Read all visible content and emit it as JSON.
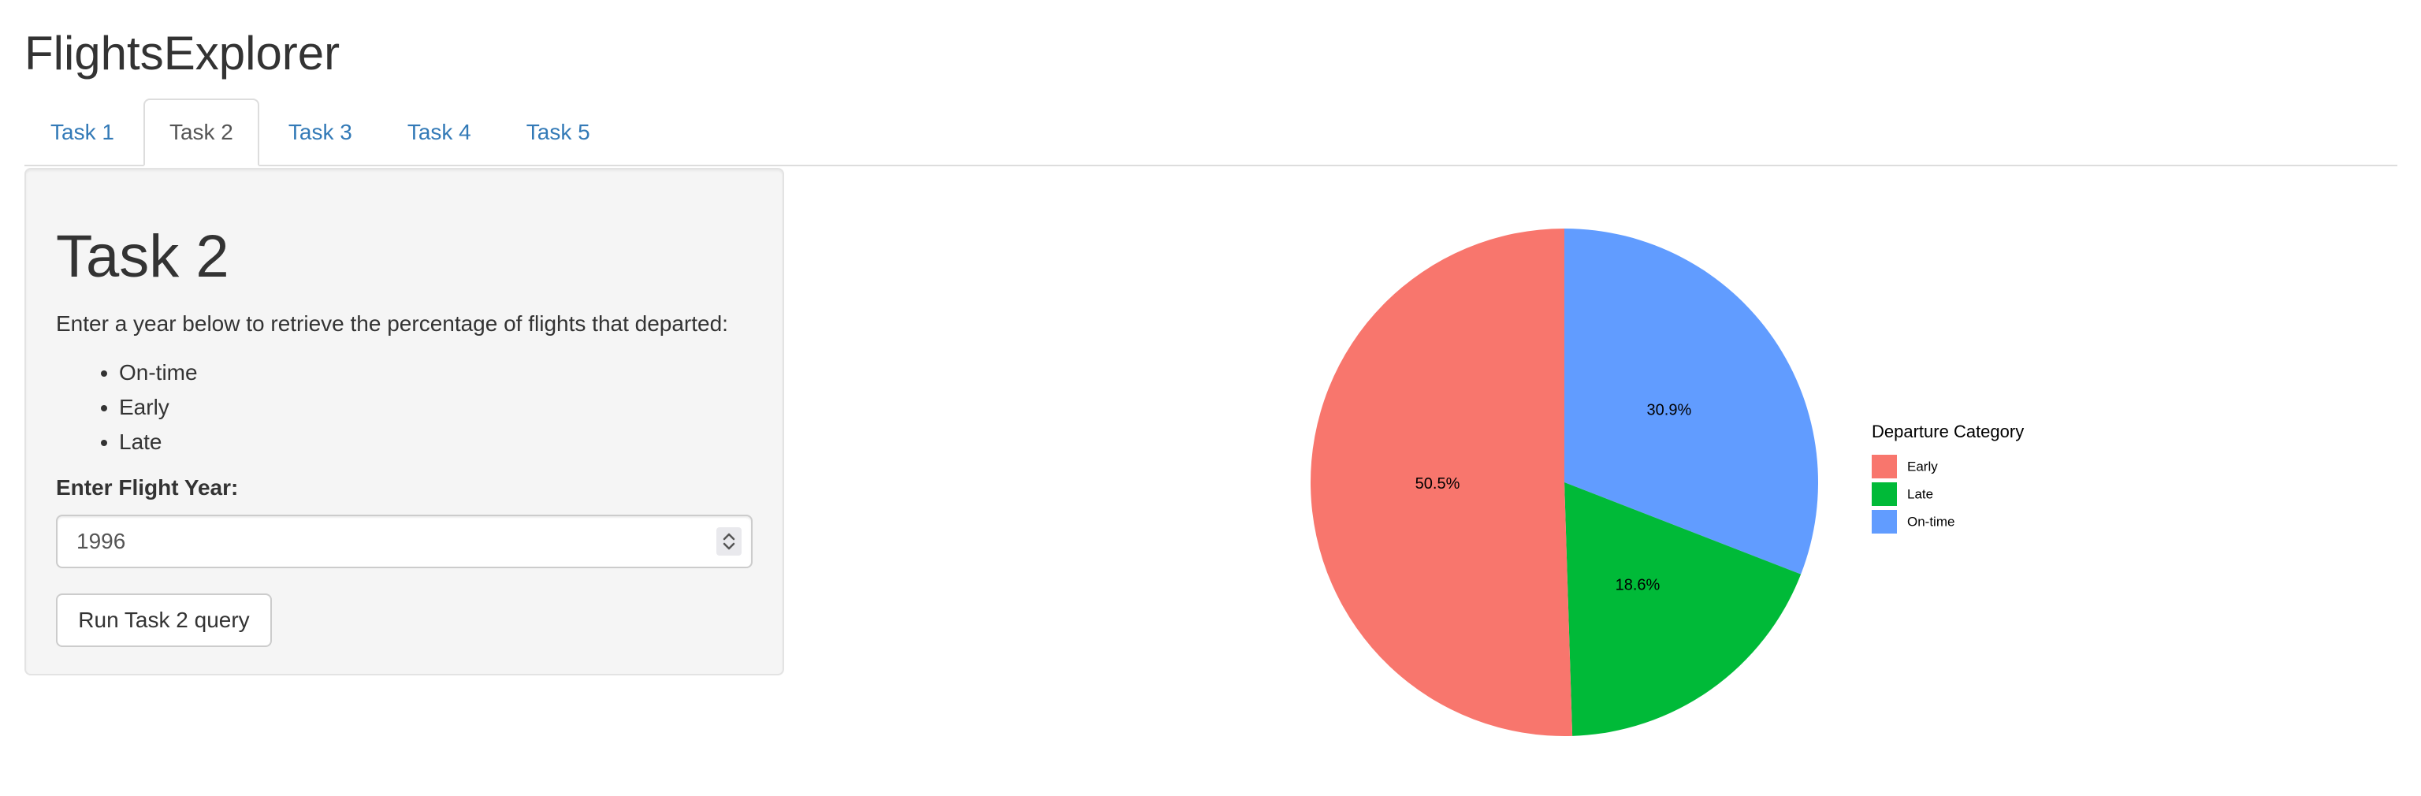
{
  "app": {
    "title": "FlightsExplorer"
  },
  "tabs": [
    {
      "label": "Task 1",
      "active": false
    },
    {
      "label": "Task 2",
      "active": true
    },
    {
      "label": "Task 3",
      "active": false
    },
    {
      "label": "Task 4",
      "active": false
    },
    {
      "label": "Task 5",
      "active": false
    }
  ],
  "panel": {
    "title": "Task 2",
    "description": "Enter a year below to retrieve the percentage of flights that departed:",
    "bullets": [
      "On-time",
      "Early",
      "Late"
    ],
    "year_label": "Enter Flight Year:",
    "year_value": "1996",
    "run_button_label": "Run Task 2 query"
  },
  "chart_data": {
    "type": "pie",
    "title": "",
    "legend_title": "Departure Category",
    "legend_position": "right",
    "slices": [
      {
        "label": "Early",
        "value": 50.5,
        "display": "50.5%",
        "color": "#F8766D"
      },
      {
        "label": "Late",
        "value": 18.6,
        "display": "18.6%",
        "color": "#00BA38"
      },
      {
        "label": "On-time",
        "value": 30.9,
        "display": "30.9%",
        "color": "#619CFF"
      }
    ]
  }
}
